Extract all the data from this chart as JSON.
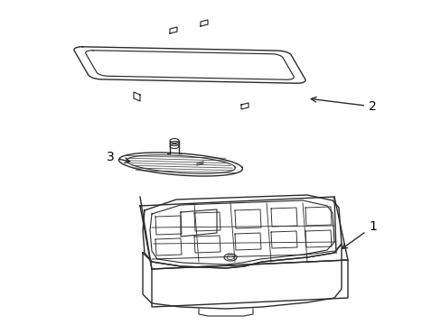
{
  "background_color": "#ffffff",
  "line_color": "#2a2a2a",
  "line_width": 1.0,
  "label_color": "#000000",
  "fig_width": 4.89,
  "fig_height": 3.6,
  "dpi": 100
}
